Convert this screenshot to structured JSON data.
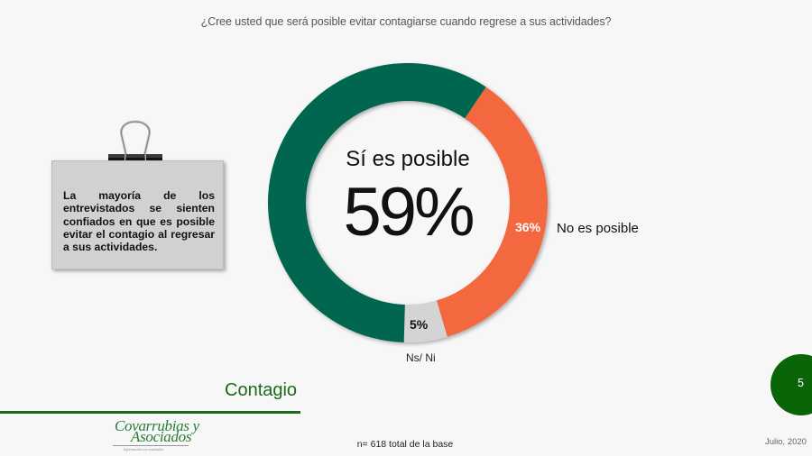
{
  "header": {
    "question": "¿Cree usted que será posible evitar contagiarse cuando regrese a sus actividades?"
  },
  "note": {
    "icon": "binder-clip-icon",
    "text": "La mayoría de los entrevistados se sienten confiados en que es posible evitar el contagio al regresar a sus actividades."
  },
  "donut": {
    "center_title": "Sí es posible",
    "center_value": "59%",
    "no_pct": "36%",
    "no_label": "No es posible",
    "ns_pct": "5%",
    "ns_label": "Ns/ Ni"
  },
  "chart_data": {
    "type": "pie",
    "subtype": "donut",
    "title": "¿Cree usted que será posible evitar contagiarse cuando regrese a sus actividades?",
    "categories": [
      "Sí es posible",
      "No es posible",
      "Ns/ Ni"
    ],
    "values": [
      59,
      36,
      5
    ],
    "unit": "%",
    "colors": [
      "#03664f",
      "#f4683f",
      "#d4d4d4"
    ],
    "labels": [
      "59%",
      "36%",
      "5%"
    ],
    "legend": "none (direct labels)",
    "note": "n= 618 total de la base"
  },
  "footer": {
    "section_title": "Contagio",
    "logo_line1": "Covarrubias y",
    "logo_line2": "Asociados",
    "logo_tagline": "Información con resultados",
    "base_note": "n= 618 total de la base",
    "page_number": "5",
    "date": "Julio, 2020"
  },
  "colors": {
    "background": "#f7f7f7",
    "green_segment": "#03664f",
    "orange_segment": "#f4683f",
    "gray_segment": "#d4d4d4",
    "brand_green": "#1a6a1a",
    "page_badge": "#0a6508"
  }
}
